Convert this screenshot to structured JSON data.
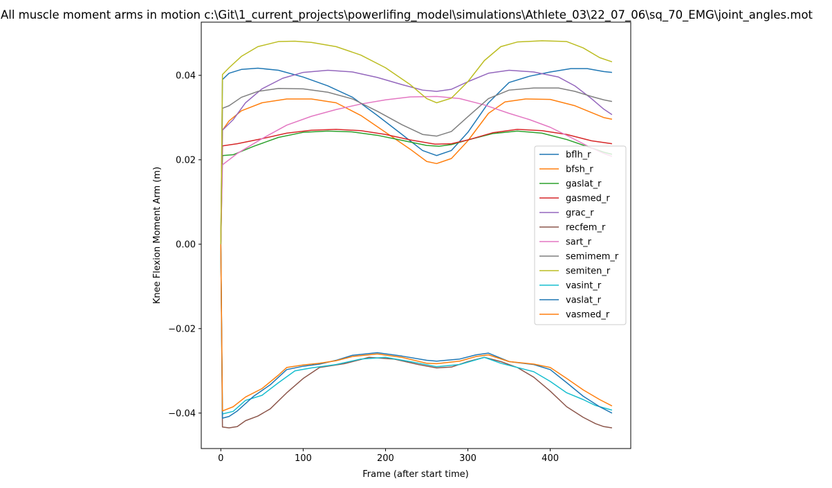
{
  "chart_data": {
    "type": "line",
    "title": "All muscle moment arms in motion c:\\Git\\1_current_projects\\powerlifing_model\\simulations\\Athlete_03\\22_07_06\\sq_70_EMG\\joint_angles.mot",
    "xlabel": "Frame (after start time)",
    "ylabel": "Knee Flexion Moment Arm (m)",
    "xlim": [
      -23.75,
      497.75
    ],
    "ylim": [
      -0.0484,
      0.0526
    ],
    "xticks": [
      0,
      100,
      200,
      300,
      400
    ],
    "xtick_labels": [
      "0",
      "100",
      "200",
      "300",
      "400"
    ],
    "yticks": [
      -0.04,
      -0.02,
      0.0,
      0.02,
      0.04
    ],
    "ytick_labels": [
      "−0.04",
      "−0.02",
      "0.00",
      "0.02",
      "0.04"
    ],
    "grid": false,
    "legend_position": "center-right",
    "series": [
      {
        "name": "bflh_r",
        "color": "#1f77b4",
        "x": [
          0,
          2,
          10,
          25,
          45,
          70,
          100,
          130,
          160,
          190,
          220,
          245,
          262,
          280,
          300,
          325,
          350,
          375,
          400,
          425,
          445,
          465,
          475
        ],
        "y": [
          0,
          0.039,
          0.0405,
          0.0414,
          0.0417,
          0.0412,
          0.0396,
          0.0375,
          0.0348,
          0.0305,
          0.026,
          0.0222,
          0.021,
          0.0222,
          0.0265,
          0.0335,
          0.0383,
          0.0398,
          0.0408,
          0.0416,
          0.0416,
          0.0409,
          0.0407
        ]
      },
      {
        "name": "bfsh_r",
        "color": "#ff7f0e",
        "x": [
          0,
          2,
          10,
          25,
          50,
          80,
          110,
          140,
          170,
          200,
          230,
          250,
          262,
          280,
          300,
          325,
          345,
          370,
          400,
          430,
          450,
          465,
          475
        ],
        "y": [
          0,
          0.027,
          0.0292,
          0.0316,
          0.0335,
          0.0344,
          0.0344,
          0.0335,
          0.0305,
          0.0265,
          0.0225,
          0.0196,
          0.0191,
          0.0203,
          0.0245,
          0.031,
          0.0337,
          0.0344,
          0.0343,
          0.0328,
          0.0312,
          0.03,
          0.0296
        ]
      },
      {
        "name": "gaslat_r",
        "color": "#2ca02c",
        "x": [
          0,
          2,
          15,
          40,
          70,
          100,
          130,
          160,
          190,
          220,
          250,
          265,
          280,
          300,
          330,
          360,
          390,
          420,
          450,
          465,
          475
        ],
        "y": [
          0,
          0.021,
          0.0212,
          0.0232,
          0.0253,
          0.0265,
          0.0268,
          0.0266,
          0.0258,
          0.0246,
          0.0234,
          0.0232,
          0.0236,
          0.0247,
          0.0262,
          0.0268,
          0.0263,
          0.0248,
          0.0228,
          0.0218,
          0.0213
        ]
      },
      {
        "name": "gasmed_r",
        "color": "#d62728",
        "x": [
          0,
          2,
          20,
          50,
          80,
          110,
          140,
          170,
          200,
          230,
          260,
          280,
          300,
          330,
          360,
          390,
          420,
          450,
          475
        ],
        "y": [
          0,
          0.0233,
          0.0238,
          0.025,
          0.0263,
          0.027,
          0.0272,
          0.0269,
          0.026,
          0.0247,
          0.0237,
          0.0238,
          0.0247,
          0.0264,
          0.0272,
          0.0269,
          0.026,
          0.0245,
          0.0238
        ]
      },
      {
        "name": "grac_r",
        "color": "#9467bd",
        "x": [
          0,
          2,
          15,
          30,
          50,
          75,
          100,
          130,
          160,
          190,
          220,
          245,
          262,
          280,
          300,
          325,
          350,
          380,
          410,
          430,
          450,
          465,
          475
        ],
        "y": [
          0,
          0.027,
          0.0295,
          0.0335,
          0.0368,
          0.0393,
          0.0407,
          0.0412,
          0.0408,
          0.0395,
          0.0378,
          0.0365,
          0.0362,
          0.0367,
          0.0385,
          0.0405,
          0.0412,
          0.0408,
          0.0396,
          0.0375,
          0.0345,
          0.032,
          0.0307
        ]
      },
      {
        "name": "recfem_r",
        "color": "#8c564b",
        "x": [
          0,
          2,
          10,
          20,
          30,
          45,
          60,
          80,
          100,
          120,
          150,
          180,
          210,
          240,
          262,
          280,
          300,
          320,
          340,
          360,
          380,
          400,
          420,
          440,
          455,
          465,
          475
        ],
        "y": [
          0,
          -0.0433,
          -0.0435,
          -0.0432,
          -0.0418,
          -0.0407,
          -0.039,
          -0.0352,
          -0.0318,
          -0.0292,
          -0.0283,
          -0.0268,
          -0.0272,
          -0.0285,
          -0.0293,
          -0.0291,
          -0.0278,
          -0.0268,
          -0.0278,
          -0.0292,
          -0.0315,
          -0.0348,
          -0.0385,
          -0.041,
          -0.0425,
          -0.0432,
          -0.0435
        ]
      },
      {
        "name": "sart_r",
        "color": "#e377c2",
        "x": [
          0,
          2,
          20,
          50,
          80,
          110,
          140,
          170,
          200,
          230,
          262,
          290,
          320,
          350,
          375,
          400,
          425,
          450,
          465,
          475
        ],
        "y": [
          0,
          0.0188,
          0.0215,
          0.025,
          0.0282,
          0.0303,
          0.0319,
          0.0332,
          0.0342,
          0.0349,
          0.035,
          0.0345,
          0.033,
          0.031,
          0.0295,
          0.0277,
          0.0253,
          0.0228,
          0.0215,
          0.0208
        ]
      },
      {
        "name": "semimem_r",
        "color": "#7f7f7f",
        "x": [
          0,
          2,
          10,
          25,
          45,
          70,
          100,
          130,
          160,
          190,
          220,
          245,
          262,
          280,
          300,
          325,
          350,
          380,
          410,
          430,
          450,
          465,
          475
        ],
        "y": [
          0,
          0.0322,
          0.0328,
          0.0348,
          0.0362,
          0.0369,
          0.0368,
          0.036,
          0.0344,
          0.0315,
          0.0283,
          0.026,
          0.0256,
          0.0267,
          0.0302,
          0.0345,
          0.0365,
          0.037,
          0.037,
          0.0362,
          0.035,
          0.0342,
          0.0338
        ]
      },
      {
        "name": "semiten_r",
        "color": "#bcbd22",
        "x": [
          0,
          2,
          10,
          25,
          45,
          70,
          90,
          110,
          140,
          170,
          200,
          230,
          250,
          262,
          280,
          300,
          320,
          340,
          360,
          390,
          420,
          440,
          460,
          475
        ],
        "y": [
          0,
          0.0402,
          0.0418,
          0.0445,
          0.0468,
          0.048,
          0.0481,
          0.0478,
          0.0468,
          0.0448,
          0.0418,
          0.0378,
          0.0345,
          0.0335,
          0.0346,
          0.0385,
          0.0435,
          0.0468,
          0.0479,
          0.0482,
          0.048,
          0.0465,
          0.0442,
          0.0432
        ]
      },
      {
        "name": "vasint_r",
        "color": "#17becf",
        "x": [
          0,
          2,
          15,
          30,
          50,
          70,
          90,
          110,
          140,
          170,
          200,
          230,
          262,
          290,
          320,
          340,
          360,
          380,
          400,
          420,
          440,
          455,
          475
        ],
        "y": [
          0,
          -0.0402,
          -0.0396,
          -0.037,
          -0.0358,
          -0.0328,
          -0.03,
          -0.0293,
          -0.0285,
          -0.0272,
          -0.0268,
          -0.0278,
          -0.029,
          -0.0285,
          -0.0268,
          -0.0282,
          -0.0292,
          -0.0302,
          -0.0325,
          -0.0352,
          -0.0368,
          -0.0382,
          -0.0393
        ]
      },
      {
        "name": "vaslat_r",
        "color": "#1f77b4",
        "x": [
          0,
          2,
          10,
          20,
          40,
          60,
          80,
          100,
          120,
          140,
          160,
          190,
          220,
          250,
          262,
          290,
          310,
          325,
          350,
          380,
          400,
          420,
          440,
          460,
          475
        ],
        "y": [
          0,
          -0.0412,
          -0.0408,
          -0.0395,
          -0.036,
          -0.0333,
          -0.0297,
          -0.0289,
          -0.0284,
          -0.0275,
          -0.0263,
          -0.0257,
          -0.0265,
          -0.0275,
          -0.0277,
          -0.0272,
          -0.0262,
          -0.0258,
          -0.0278,
          -0.0285,
          -0.0297,
          -0.0328,
          -0.036,
          -0.0385,
          -0.04
        ]
      },
      {
        "name": "vasmed_r",
        "color": "#ff7f0e",
        "x": [
          0,
          2,
          15,
          30,
          50,
          70,
          80,
          100,
          120,
          140,
          160,
          190,
          220,
          250,
          262,
          290,
          310,
          325,
          350,
          380,
          400,
          420,
          440,
          460,
          475
        ],
        "y": [
          0,
          -0.0395,
          -0.0385,
          -0.0362,
          -0.0342,
          -0.031,
          -0.0292,
          -0.0286,
          -0.0282,
          -0.0276,
          -0.0266,
          -0.026,
          -0.0268,
          -0.0282,
          -0.0283,
          -0.0277,
          -0.0266,
          -0.0262,
          -0.0278,
          -0.0284,
          -0.0292,
          -0.0318,
          -0.0345,
          -0.0368,
          -0.0383
        ]
      }
    ]
  }
}
